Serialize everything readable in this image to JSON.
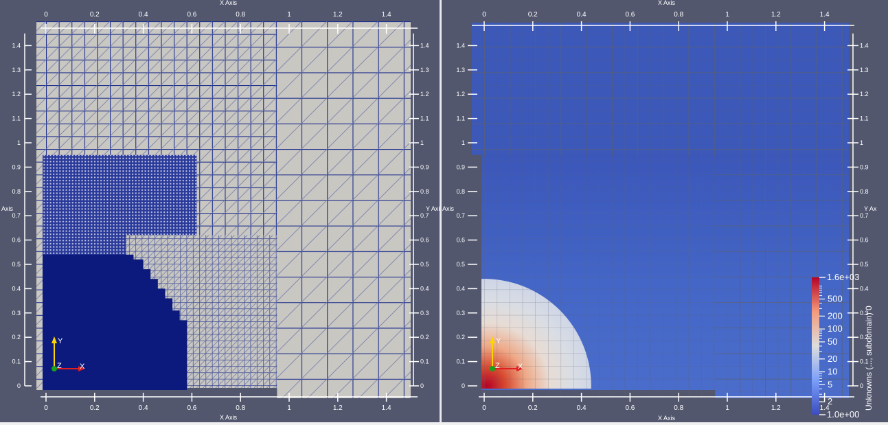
{
  "left_view": {
    "top_axis_title": "X Axis",
    "bottom_axis_title": "X Axis",
    "left_axis_title": "Axis",
    "right_axis_title": "Y Axis",
    "x_ticks": [
      "0",
      "0.2",
      "0.4",
      "0.6",
      "0.8",
      "1",
      "1.2",
      "1.4"
    ],
    "y_ticks": [
      "0",
      "0.1",
      "0.2",
      "0.3",
      "0.4",
      "0.5",
      "0.6",
      "0.7",
      "0.8",
      "0.9",
      "1",
      "1.1",
      "1.2",
      "1.3",
      "1.4"
    ],
    "triad": {
      "x": "X",
      "y": "Y",
      "z": "Z"
    },
    "colors": {
      "background": "#52576e",
      "mesh_fill": "#c9c7c2",
      "mesh_edge": "#1e2f8c",
      "refined_fill": "#0b1a7c"
    }
  },
  "right_view": {
    "top_axis_title": "X Axis",
    "bottom_axis_title": "X Axis",
    "right_axis_title": "Y Ax",
    "left_axis_title": "Axis",
    "x_ticks": [
      "0",
      "0.2",
      "0.4",
      "0.6",
      "0.8",
      "1",
      "1.2",
      "1.4"
    ],
    "y_ticks": [
      "0",
      "0.1",
      "0.2",
      "0.3",
      "0.4",
      "0.5",
      "0.6",
      "0.7",
      "0.8",
      "0.9",
      "1",
      "1.1",
      "1.2",
      "1.3",
      "1.4"
    ],
    "triad": {
      "x": "X",
      "y": "Y",
      "z": "Z"
    },
    "colorbar": {
      "title": "Unknowns (..., subdomain) 0",
      "max_label": "1.6e+03",
      "min_label": "1.0e+00",
      "tick_labels": [
        "500",
        "200",
        "100",
        "50",
        "20",
        "10",
        "5",
        "2"
      ],
      "scale": "log",
      "range": [
        1,
        1600
      ],
      "colors": {
        "low": "#3b4cc0",
        "mid": "#dddddd",
        "high": "#b40426"
      }
    },
    "colors": {
      "background": "#52576e",
      "field_low": "#3c58b8",
      "mesh_edge": "#5a6070"
    }
  }
}
